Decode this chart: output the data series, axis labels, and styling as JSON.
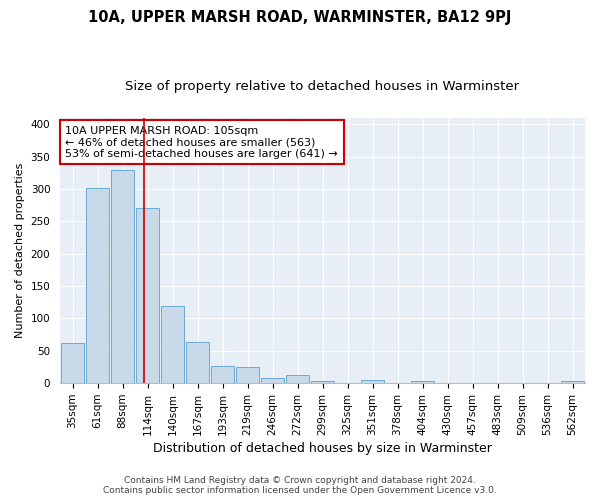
{
  "title": "10A, UPPER MARSH ROAD, WARMINSTER, BA12 9PJ",
  "subtitle": "Size of property relative to detached houses in Warminster",
  "xlabel": "Distribution of detached houses by size in Warminster",
  "ylabel": "Number of detached properties",
  "bar_labels": [
    "35sqm",
    "61sqm",
    "88sqm",
    "114sqm",
    "140sqm",
    "167sqm",
    "193sqm",
    "219sqm",
    "246sqm",
    "272sqm",
    "299sqm",
    "325sqm",
    "351sqm",
    "378sqm",
    "404sqm",
    "430sqm",
    "457sqm",
    "483sqm",
    "509sqm",
    "536sqm",
    "562sqm"
  ],
  "bar_values": [
    62,
    302,
    330,
    270,
    119,
    63,
    27,
    25,
    8,
    13,
    4,
    0,
    5,
    0,
    3,
    0,
    0,
    0,
    0,
    0,
    3
  ],
  "bar_color": "#c8d9ea",
  "bar_edgecolor": "#6aaad4",
  "vline_x": 2.87,
  "vline_color": "#cc0000",
  "annotation_text": "10A UPPER MARSH ROAD: 105sqm\n← 46% of detached houses are smaller (563)\n53% of semi-detached houses are larger (641) →",
  "annotation_box_facecolor": "#ffffff",
  "annotation_box_edgecolor": "#cc0000",
  "ylim": [
    0,
    410
  ],
  "yticks": [
    0,
    50,
    100,
    150,
    200,
    250,
    300,
    350,
    400
  ],
  "footer_line1": "Contains HM Land Registry data © Crown copyright and database right 2024.",
  "footer_line2": "Contains public sector information licensed under the Open Government Licence v3.0.",
  "bg_color": "#ffffff",
  "plot_bg_color": "#e8eef5",
  "grid_color": "#ffffff",
  "title_fontsize": 10.5,
  "subtitle_fontsize": 9.5,
  "xlabel_fontsize": 9,
  "ylabel_fontsize": 8,
  "tick_fontsize": 7.5,
  "annotation_fontsize": 8,
  "footer_fontsize": 6.5
}
